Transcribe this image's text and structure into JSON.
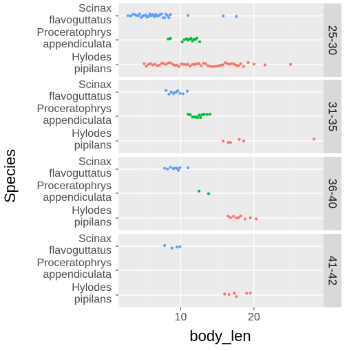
{
  "chart_data": {
    "type": "scatter",
    "xlabel": "body_len",
    "ylabel": "Species",
    "xlim": [
      1.5,
      29.5
    ],
    "x_ticks": [
      10,
      20
    ],
    "categories": [
      {
        "line1": "Scinax",
        "line2": "flavoguttatus"
      },
      {
        "line1": "Proceratophrys",
        "line2": "appendiculata"
      },
      {
        "line1": "Hylodes",
        "line2": "pipilans"
      }
    ],
    "grid": true,
    "facets": [
      {
        "label": "25-30",
        "series": [
          {
            "values": [
              2.8,
              3.2,
              3.5,
              3.8,
              4.0,
              4.2,
              4.4,
              4.6,
              4.8,
              5.0,
              5.2,
              5.4,
              5.6,
              5.8,
              6.0,
              6.2,
              6.4,
              6.6,
              6.8,
              7.0,
              7.2,
              7.4,
              7.6,
              7.8,
              8.0,
              8.2,
              8.4,
              8.6,
              11.0,
              15.8,
              17.6
            ]
          },
          {
            "values": [
              8.3,
              8.6,
              10.2,
              10.5,
              10.8,
              11.0,
              11.2,
              11.4,
              11.6,
              11.8,
              12.0,
              12.2,
              12.6
            ]
          },
          {
            "values": [
              5.0,
              5.3,
              5.6,
              5.9,
              6.2,
              6.5,
              6.8,
              7.1,
              7.4,
              7.7,
              8.0,
              8.3,
              8.6,
              8.9,
              9.2,
              9.5,
              9.8,
              10.1,
              10.4,
              10.7,
              11.0,
              11.3,
              11.6,
              11.9,
              12.2,
              12.5,
              12.8,
              13.1,
              13.4,
              13.7,
              14.0,
              14.3,
              14.6,
              14.9,
              15.2,
              15.5,
              15.8,
              16.1,
              16.4,
              16.7,
              17.0,
              17.3,
              17.6,
              17.9,
              18.2,
              18.6,
              19.2,
              20.0,
              21.5,
              25.0
            ]
          }
        ]
      },
      {
        "label": "31-35",
        "series": [
          {
            "values": [
              8.0,
              8.4,
              8.7,
              9.0,
              9.2,
              9.4,
              9.6,
              9.9,
              10.3,
              10.9
            ]
          },
          {
            "values": [
              11.0,
              11.3,
              11.6,
              11.9,
              12.1,
              12.3,
              12.5,
              12.7,
              12.9,
              13.2,
              13.6,
              14.0
            ]
          },
          {
            "values": [
              15.8,
              16.5,
              16.8,
              18.0,
              18.6,
              28.2
            ]
          }
        ]
      },
      {
        "label": "36-40",
        "series": [
          {
            "values": [
              7.8,
              8.2,
              8.6,
              9.0,
              9.3,
              9.5,
              9.7,
              9.9,
              11.0
            ]
          },
          {
            "values": [
              12.5,
              13.8
            ]
          },
          {
            "values": [
              16.5,
              16.8,
              17.2,
              17.6,
              17.9,
              18.2,
              18.8,
              19.5,
              20.3
            ]
          }
        ]
      },
      {
        "label": "41-42",
        "series": [
          {
            "values": [
              7.8,
              8.8,
              9.5,
              9.9
            ]
          },
          {
            "values": []
          },
          {
            "values": [
              16.0,
              16.6,
              17.3,
              17.6,
              19.0,
              19.5
            ]
          }
        ]
      }
    ],
    "colors": [
      "#619cff",
      "#00ba38",
      "#f8766d"
    ]
  }
}
